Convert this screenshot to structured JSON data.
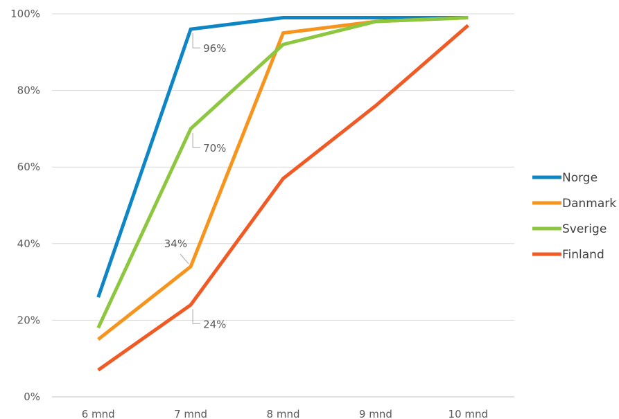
{
  "chart_data": {
    "type": "line",
    "categories": [
      "6 mnd",
      "7 mnd",
      "8 mnd",
      "9 mnd",
      "10 mnd"
    ],
    "ylim": [
      0,
      100
    ],
    "y_ticks": [
      0,
      20,
      40,
      60,
      80,
      100
    ],
    "y_tick_labels": [
      "0%",
      "20%",
      "40%",
      "60%",
      "80%",
      "100%"
    ],
    "grid": true,
    "legend_position": "right",
    "series": [
      {
        "name": "Norge",
        "color": "#0e86c6",
        "values": [
          26,
          96,
          99,
          99,
          99
        ]
      },
      {
        "name": "Danmark",
        "color": "#f7941d",
        "values": [
          15,
          34,
          95,
          98,
          99
        ]
      },
      {
        "name": "Sverige",
        "color": "#8dc63f",
        "values": [
          18,
          70,
          92,
          98,
          99
        ]
      },
      {
        "name": "Finland",
        "color": "#f15a24",
        "values": [
          7,
          24,
          57,
          76,
          97
        ]
      }
    ],
    "annotations": [
      {
        "series": "Norge",
        "category": "7 mnd",
        "text": "96%"
      },
      {
        "series": "Sverige",
        "category": "7 mnd",
        "text": "70%"
      },
      {
        "series": "Danmark",
        "category": "7 mnd",
        "text": "34%"
      },
      {
        "series": "Finland",
        "category": "7 mnd",
        "text": "24%"
      }
    ]
  }
}
